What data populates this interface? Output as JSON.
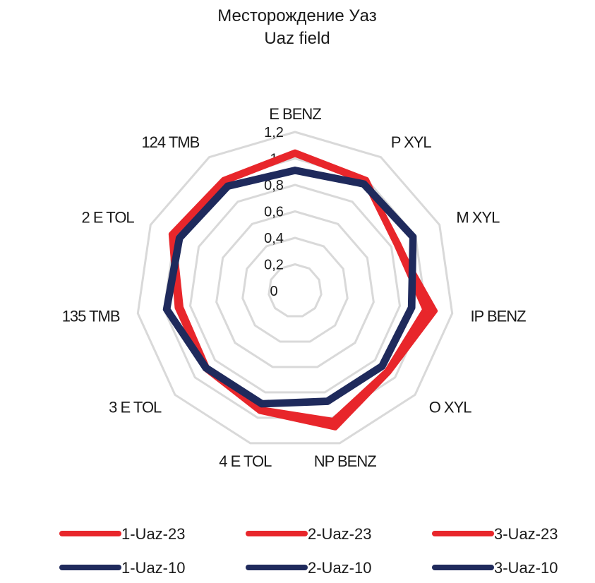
{
  "chart_data": {
    "type": "radar",
    "title": "Месторождение  Уаз",
    "subtitle": "Uaz field",
    "categories": [
      "E BENZ",
      "P XYL",
      "M XYL",
      "IP BENZ",
      "O XYL",
      "NP BENZ",
      "4 E TOL",
      "3 E TOL",
      "135 TMB",
      "2 E TOL",
      "124 TMB"
    ],
    "r_ticks": [
      "0",
      "0,2",
      "0,4",
      "0,6",
      "0,8",
      "1",
      "1,2"
    ],
    "r_range": [
      0,
      1.2
    ],
    "grid": true,
    "legend_position": "bottom",
    "series": [
      {
        "name": "1-Uaz-23",
        "color": "#e8262b",
        "values": [
          1.05,
          1.0,
          0.85,
          1.07,
          0.94,
          1.08,
          0.95,
          0.9,
          0.9,
          1.03,
          1.0
        ]
      },
      {
        "name": "2-Uaz-23",
        "color": "#e8262b",
        "values": [
          1.04,
          0.99,
          0.86,
          1.03,
          0.93,
          1.05,
          0.94,
          0.89,
          0.88,
          1.02,
          0.99
        ]
      },
      {
        "name": "3-Uaz-23",
        "color": "#e8262b",
        "values": [
          1.03,
          0.98,
          0.84,
          0.99,
          0.92,
          1.02,
          0.93,
          0.88,
          0.87,
          1.01,
          0.98
        ]
      },
      {
        "name": "1-Uaz-10",
        "color": "#1f2a5c",
        "values": [
          0.9,
          0.95,
          0.97,
          0.88,
          0.86,
          0.86,
          0.88,
          0.88,
          0.97,
          0.95,
          0.93
        ]
      },
      {
        "name": "2-Uaz-10",
        "color": "#1f2a5c",
        "values": [
          0.91,
          0.96,
          0.98,
          0.89,
          0.87,
          0.87,
          0.89,
          0.89,
          0.98,
          0.96,
          0.94
        ]
      },
      {
        "name": "3-Uaz-10",
        "color": "#1f2a5c",
        "values": [
          0.92,
          0.97,
          0.99,
          0.9,
          0.88,
          0.88,
          0.9,
          0.9,
          0.99,
          0.97,
          0.95
        ]
      }
    ]
  }
}
